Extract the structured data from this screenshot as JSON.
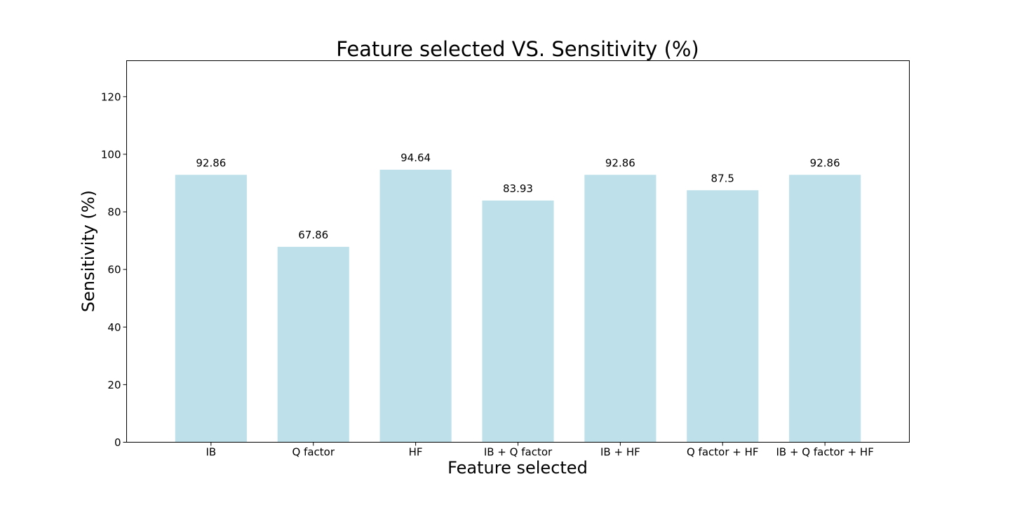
{
  "chart_data": {
    "type": "bar",
    "title": "Feature selected VS. Sensitivity (%)",
    "xlabel": "Feature selected",
    "ylabel": "Sensitivity (%)",
    "categories": [
      "IB",
      "Q factor",
      "HF",
      "IB + Q factor",
      "IB + HF",
      "Q factor + HF",
      "IB + Q factor + HF"
    ],
    "values": [
      92.86,
      67.86,
      94.64,
      83.93,
      92.86,
      87.5,
      92.86
    ],
    "data_labels": [
      "92.86",
      "67.86",
      "94.64",
      "83.93",
      "92.86",
      "87.5",
      "92.86"
    ],
    "yticks": [
      0,
      20,
      40,
      60,
      80,
      100,
      120
    ],
    "ylim": [
      0,
      132.5
    ],
    "grid": false,
    "bar_color": "#add8e6",
    "bar_opacity": 0.8
  }
}
